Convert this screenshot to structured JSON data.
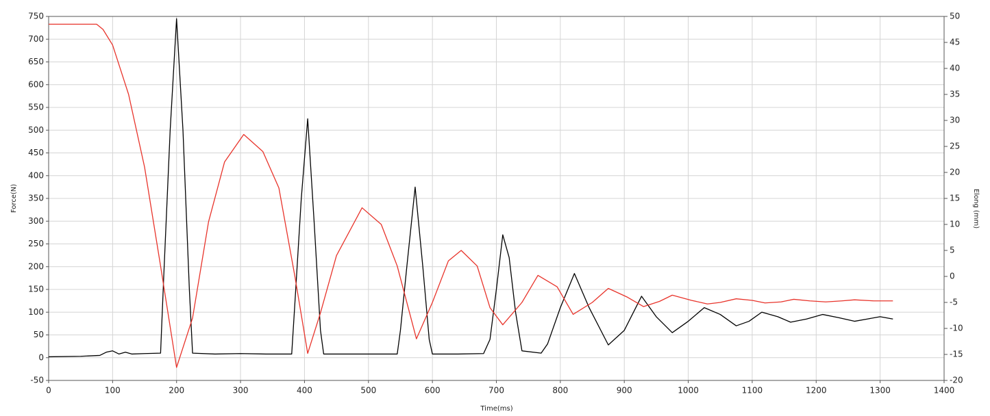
{
  "chart_data": {
    "type": "line",
    "xlabel": "Time(ms)",
    "ylabel": "Force(N)",
    "y2label": "Elong (mm)",
    "xlim": [
      0,
      1400
    ],
    "xticks": [
      0,
      100,
      200,
      300,
      400,
      500,
      600,
      700,
      800,
      900,
      1000,
      1100,
      1200,
      1300,
      1400
    ],
    "ylim": [
      -50,
      750
    ],
    "yticks": [
      -50,
      0,
      50,
      100,
      150,
      200,
      250,
      300,
      350,
      400,
      450,
      500,
      550,
      600,
      650,
      700,
      750
    ],
    "y2lim": [
      -20,
      50
    ],
    "y2ticks": [
      -20,
      -15,
      -10,
      -5,
      0,
      5,
      10,
      15,
      20,
      25,
      30,
      35,
      40,
      45,
      50
    ],
    "grid": true,
    "series": [
      {
        "color": "#000000",
        "x": [
          0,
          50,
          80,
          90,
          100,
          110,
          120,
          130,
          150,
          175,
          180,
          190,
          200,
          210,
          220,
          225,
          260,
          300,
          340,
          380,
          385,
          395,
          405,
          415,
          425,
          430,
          470,
          510,
          545,
          550,
          560,
          573,
          585,
          595,
          600,
          640,
          680,
          690,
          700,
          710,
          720,
          730,
          740,
          770,
          780,
          800,
          822,
          845,
          875,
          900,
          927,
          950,
          975,
          1000,
          1025,
          1050,
          1075,
          1095,
          1115,
          1140,
          1160,
          1185,
          1210,
          1235,
          1260,
          1280,
          1300,
          1320
        ],
        "values": [
          2,
          3,
          5,
          12,
          15,
          8,
          12,
          8,
          9,
          10,
          180,
          500,
          745,
          500,
          150,
          10,
          8,
          9,
          8,
          8,
          120,
          350,
          525,
          300,
          60,
          8,
          8,
          8,
          8,
          60,
          200,
          375,
          200,
          40,
          8,
          8,
          9,
          40,
          150,
          270,
          220,
          100,
          15,
          10,
          30,
          110,
          185,
          110,
          28,
          60,
          135,
          90,
          55,
          80,
          110,
          95,
          70,
          80,
          100,
          90,
          78,
          85,
          95,
          88,
          80,
          85,
          90,
          85
        ]
      },
      {
        "color": "#e8332a",
        "axis": "y2",
        "x": [
          0,
          75,
          85,
          100,
          125,
          150,
          175,
          200,
          225,
          250,
          275,
          305,
          335,
          360,
          385,
          405,
          425,
          450,
          490,
          520,
          545,
          575,
          600,
          625,
          645,
          670,
          690,
          710,
          740,
          765,
          795,
          820,
          850,
          875,
          905,
          930,
          955,
          975,
          1005,
          1030,
          1050,
          1075,
          1100,
          1120,
          1145,
          1165,
          1190,
          1215,
          1240,
          1260,
          1290,
          1320
        ],
        "values": [
          48.5,
          48.5,
          47.5,
          44.5,
          35,
          21,
          2,
          -17.5,
          -8,
          10.5,
          22,
          27.3,
          24,
          17,
          0,
          -14.8,
          -7,
          4,
          13.2,
          10,
          2,
          -12,
          -5,
          3,
          5,
          2,
          -6,
          -9.3,
          -5,
          0.2,
          -2,
          -7.3,
          -5,
          -2.3,
          -4,
          -5.8,
          -4.8,
          -3.6,
          -4.6,
          -5.3,
          -5,
          -4.3,
          -4.6,
          -5.1,
          -4.9,
          -4.4,
          -4.7,
          -4.9,
          -4.7,
          -4.5,
          -4.7,
          -4.7
        ]
      }
    ]
  }
}
